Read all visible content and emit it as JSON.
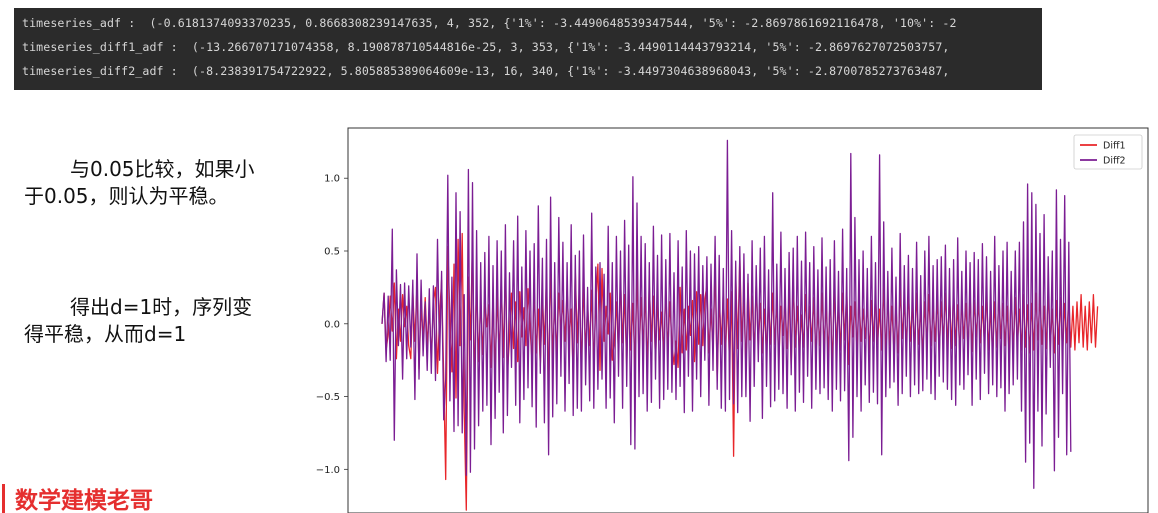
{
  "console": {
    "lines": [
      "timeseries_adf :  (-0.6181374093370235, 0.8668308239147635, 4, 352, {'1%': -3.4490648539347544, '5%': -2.8697861692116478, '10%': -2",
      "timeseries_diff1_adf :  (-13.266707171074358, 8.190878710544816e-25, 3, 353, {'1%': -3.4490114443793214, '5%': -2.8697627072503757,",
      "timeseries_diff2_adf :  (-8.238391754722922, 5.805885389064609e-13, 16, 340, {'1%': -3.4497304638968043, '5%': -2.8700785273763487,"
    ]
  },
  "notes": {
    "p1": "与0.05比较，如果小于0.05，则认为平稳。",
    "p2": "得出d=1时，序列变得平稳，从而d=1"
  },
  "watermark": "数学建模老哥",
  "chart_data": {
    "type": "line",
    "ylim": [
      -1.3,
      1.4
    ],
    "xlim": [
      0,
      356
    ],
    "yticks": [
      -1.0,
      -0.5,
      0.0,
      0.5,
      1.0
    ],
    "ytick_labels": [
      "−1.0",
      "−0.5",
      "0.0",
      "0.5",
      "1.0"
    ],
    "legend_position": "top-right",
    "grid": false,
    "series": [
      {
        "name": "Diff1",
        "color": "#e8262a",
        "values": [
          0,
          0.21,
          -0.18,
          -0.07,
          0.19,
          -0.05,
          0.28,
          -0.24,
          0.1,
          -0.12,
          0.2,
          -0.02,
          0.12,
          -0.15,
          -0.24,
          0.22,
          -0.12,
          0.27,
          -0.31,
          0.12,
          -0.1,
          0.18,
          -0.15,
          0.1,
          -0.24,
          0.15,
          0.25,
          -0.34,
          0.06,
          0.3,
          -0.36,
          -1.07,
          0.53,
          0.05,
          -0.33,
          0.41,
          -0.51,
          0.58,
          -0.15,
          0.62,
          -0.6,
          -1.28,
          0.32,
          -0.11,
          0.56,
          -0.44,
          0.3,
          -0.26,
          0.16,
          -0.21,
          0.17,
          -0.02,
          0.13,
          -0.3,
          0.2,
          -0.35,
          0.21,
          -0.22,
          0.28,
          -0.23,
          0.4,
          -0.34,
          -0.1,
          0.21,
          -0.17,
          0.15,
          -0.26,
          0.22,
          -0.09,
          0.11,
          -0.15,
          0.24,
          -0.02,
          -0.27,
          0.25,
          -0.2,
          0.1,
          -0.29,
          0.18,
          -0.14,
          0.32,
          -0.45,
          0.42,
          -0.24,
          0.15,
          -0.21,
          0.21,
          -0.05,
          0.16,
          -0.12,
          0.24,
          -0.1,
          0.1,
          -0.36,
          0.37,
          -0.13,
          0.25,
          -0.31,
          0.28,
          -0.19,
          0.13,
          -0.15,
          0.23,
          -0.28,
          0.14,
          0.41,
          -0.32,
          0.38,
          -0.12,
          0.12,
          -0.07,
          0.21,
          -0.25,
          -0.12,
          0.15,
          -0.2,
          0.31,
          -0.13,
          0.2,
          -0.29,
          0.28,
          -0.18,
          0.14,
          -0.3,
          0.36,
          -0.25,
          0.18,
          -0.16,
          0.22,
          -0.3,
          0.27,
          -0.12,
          0.19,
          -0.25,
          0.16,
          -0.11,
          0.08,
          -0.2,
          0.24,
          -0.18,
          0.15,
          -0.14,
          -0.28,
          -0.12,
          -0.3,
          0.25,
          -0.2,
          0.1,
          -0.18,
          0.12,
          -0.08,
          0.16,
          -0.26,
          0.22,
          -0.14,
          0.2,
          -0.15,
          0.17,
          0.26,
          -0.2,
          0.1,
          -0.18,
          0.4,
          -0.39,
          0.18,
          -0.14,
          0.22,
          -0.22,
          0.17,
          -0.26,
          0.22,
          -0.91,
          0.34,
          -0.17,
          0.46,
          -0.12,
          0.2,
          -0.31,
          0.28,
          -0.11,
          0.19,
          -0.21,
          0.28,
          -0.16,
          0.14,
          -0.2,
          0.1,
          -0.2,
          0.16,
          -0.14,
          0.21,
          -0.14,
          0.16,
          -0.26,
          0.12,
          -0.08,
          0.17,
          -0.17,
          0.22,
          -0.3,
          0.3,
          -0.16,
          0.12,
          -0.2,
          0.06,
          -0.16,
          0.2,
          -0.13,
          0.12,
          -0.12,
          0.18,
          -0.22,
          0.1,
          -0.15,
          0.21,
          -0.16,
          0.14,
          -0.22,
          0.22,
          -0.3,
          0.26,
          -0.16,
          0.14,
          -0.18,
          0.21,
          -0.11,
          0.23,
          -0.28,
          0.12,
          -0.09,
          0.15,
          -0.18,
          0.18,
          -0.12,
          0.1,
          -0.1,
          0.14,
          -0.2,
          0.16,
          -0.12,
          0.2,
          -0.14,
          0.1,
          -0.18,
          0.28,
          -0.22,
          0.19,
          -0.15,
          0.12,
          -0.2,
          0.13,
          -0.2,
          0.25,
          -0.1,
          0.16,
          -0.16,
          0.22,
          -0.12,
          0.13,
          -0.17,
          0.21,
          -0.14,
          0.11,
          -0.22,
          0.15,
          -0.14,
          0.2,
          -0.15,
          0.12,
          -0.12,
          0.18,
          -0.2,
          0.15,
          -0.12,
          0.21,
          -0.16,
          0.19,
          -0.17,
          0.23,
          -0.15,
          0.13,
          -0.2,
          0.16,
          -0.1,
          0.14,
          -0.18,
          0.2,
          -0.19,
          0.16,
          -0.09,
          0.15,
          -0.13,
          0.12,
          -0.14,
          0.22,
          -0.18,
          0.11,
          -0.21,
          0.15,
          -0.16,
          0.2,
          -0.1,
          0.14,
          -0.15,
          0.12,
          -0.22,
          0.24,
          -0.2,
          0.18,
          -0.14,
          0.1,
          -0.18,
          0.2,
          -0.16,
          0.13,
          -0.2,
          0.14,
          -0.18,
          0.21,
          -0.11,
          0.19,
          -0.14,
          0.12,
          -0.17,
          0.22,
          -0.15,
          0.1,
          -0.2,
          0.16,
          -0.14,
          0.18,
          -0.2,
          0.14,
          -0.13,
          0.2,
          -0.16,
          0.12,
          -0.18,
          0.15,
          -0.13,
          0.2,
          -0.16,
          0.12,
          -0.18,
          0.15,
          -0.13,
          0.2,
          -0.16,
          0.12
        ]
      },
      {
        "name": "Diff2",
        "color": "#7b1d93",
        "values": [
          0,
          0.21,
          -0.26,
          0.19,
          -0.25,
          0.65,
          -0.8,
          0.37,
          -0.15,
          0.27,
          -0.38,
          0.28,
          -0.24,
          0.26,
          -0.16,
          0.3,
          -0.52,
          0.48,
          -0.38,
          0.3,
          -0.22,
          0.15,
          -0.32,
          0.24,
          -0.34,
          0.26,
          -0.39,
          0.58,
          -0.25,
          0.36,
          -0.66,
          -0.38,
          1.02,
          -0.53,
          0.32,
          -0.74,
          0.9,
          -0.7,
          0.77,
          -0.75,
          0.2,
          -1.04,
          1.06,
          -1.02,
          0.97,
          -0.86,
          0.64,
          -0.7,
          0.42,
          -0.6,
          0.49,
          -0.56,
          0.6,
          -0.83,
          0.4,
          -0.65,
          0.57,
          -0.47,
          0.5,
          -0.75,
          0.68,
          -0.63,
          0.35,
          -0.3,
          0.57,
          -0.56,
          0.74,
          -0.68,
          0.39,
          -0.52,
          0.64,
          -0.44,
          0.5,
          -0.57,
          0.55,
          -0.71,
          0.81,
          -0.34,
          0.45,
          -0.68,
          0.58,
          -0.9,
          0.87,
          -0.64,
          0.42,
          -0.55,
          0.73,
          -0.36,
          0.56,
          -0.6,
          0.42,
          -0.41,
          0.68,
          -0.63,
          0.47,
          -0.58,
          0.5,
          -0.6,
          0.61,
          -0.42,
          0.25,
          -0.53,
          0.76,
          -0.58,
          0.39,
          -0.45,
          0.42,
          -0.38,
          0.34,
          -0.58,
          0.67,
          -0.51,
          0.42,
          -0.68,
          0.6,
          -0.36,
          0.5,
          -0.58,
          0.71,
          -0.43,
          0.54,
          -0.83,
          1.01,
          -0.86,
          0.83,
          -0.5,
          0.6,
          -0.48,
          0.55,
          -0.6,
          0.42,
          -0.54,
          0.67,
          -0.38,
          0.47,
          -0.58,
          0.61,
          -0.52,
          0.44,
          -0.45,
          0.62,
          -0.47,
          0.35,
          -0.52,
          0.57,
          -0.43,
          0.39,
          -0.61,
          0.64,
          -0.36,
          0.5,
          -0.6,
          0.48,
          -0.38,
          0.53,
          -0.5,
          0.4,
          -0.25,
          0.46,
          -0.56,
          0.41,
          -0.32,
          0.6,
          -0.45,
          0.47,
          -0.58,
          0.38,
          -0.6,
          1.26,
          -0.52,
          0.64,
          -0.55,
          0.43,
          -0.61,
          0.53,
          -0.5,
          0.48,
          -0.5,
          0.34,
          -0.67,
          0.57,
          -0.43,
          0.4,
          -0.26,
          0.52,
          -0.65,
          0.6,
          -0.43,
          0.37,
          -0.57,
          0.9,
          -0.53,
          0.41,
          -0.45,
          0.63,
          -0.48,
          0.38,
          -0.58,
          0.49,
          -0.35,
          0.52,
          -0.6,
          0.6,
          -0.47,
          0.43,
          -0.54,
          0.63,
          -0.36,
          0.42,
          -0.58,
          0.53,
          -0.45,
          0.37,
          -0.48,
          0.59,
          -0.44,
          0.39,
          -0.52,
          0.44,
          -0.6,
          0.57,
          -0.45,
          0.36,
          -0.53,
          0.65,
          -0.46,
          0.38,
          -0.94,
          1.17,
          -0.78,
          0.73,
          -0.5,
          0.44,
          -0.6,
          0.5,
          -0.42,
          0.38,
          -0.54,
          0.6,
          -0.47,
          0.42,
          -0.55,
          1.16,
          -0.9,
          0.7,
          -0.5,
          0.36,
          -0.44,
          0.52,
          -0.4,
          0.32,
          -0.56,
          0.62,
          -0.48,
          0.4,
          -0.36,
          0.47,
          -0.5,
          0.38,
          -0.42,
          0.56,
          -0.48,
          0.33,
          -0.46,
          0.5,
          -0.38,
          0.6,
          -0.48,
          0.4,
          -0.52,
          0.44,
          -0.36,
          0.46,
          -0.4,
          0.54,
          -0.45,
          0.38,
          -0.52,
          0.44,
          -0.56,
          0.59,
          -0.42,
          0.36,
          -0.45,
          0.5,
          -0.35,
          0.42,
          -0.56,
          0.49,
          -0.38,
          0.44,
          -0.52,
          0.55,
          -0.34,
          0.46,
          -0.48,
          0.36,
          -0.42,
          0.6,
          -0.5,
          0.4,
          -0.44,
          0.5,
          -0.6,
          0.56,
          -0.48,
          0.36,
          -0.42,
          0.5,
          -0.38,
          0.56,
          -0.6,
          0.7,
          -0.95,
          0.96,
          -0.82,
          0.9,
          -1.13,
          0.82,
          -0.6,
          0.62,
          -0.84,
          0.75,
          -0.62,
          0.46,
          -0.3,
          0.5,
          -1.01,
          0.92,
          -0.78,
          0.58,
          -0.48,
          0.88,
          -0.9,
          0.56,
          -0.88
        ]
      }
    ]
  }
}
